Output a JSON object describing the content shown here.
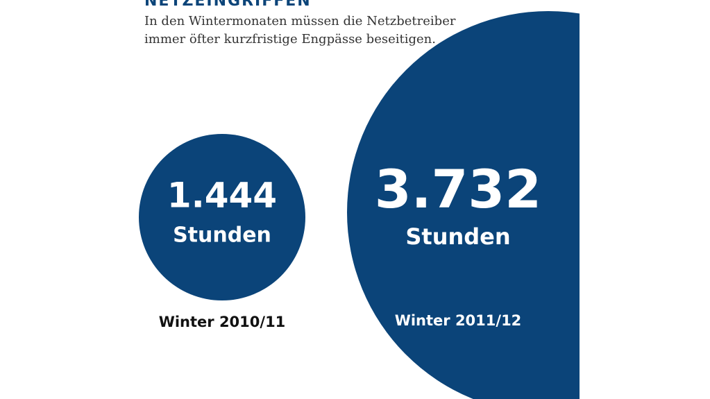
{
  "chart_data": {
    "type": "bubble",
    "title": "NETZEINGRIFFEN",
    "subtitle": [
      "In den Wintermonaten müssen die Netzbetreiber",
      "immer öfter kurzfristige Engpässe beseitigen."
    ],
    "categories": [
      "Winter 2010/11",
      "Winter 2011/12"
    ],
    "values": [
      1444,
      3732
    ],
    "value_labels": [
      "1.444",
      "3.732"
    ],
    "unit": "Stunden",
    "color": "#0b4479"
  }
}
